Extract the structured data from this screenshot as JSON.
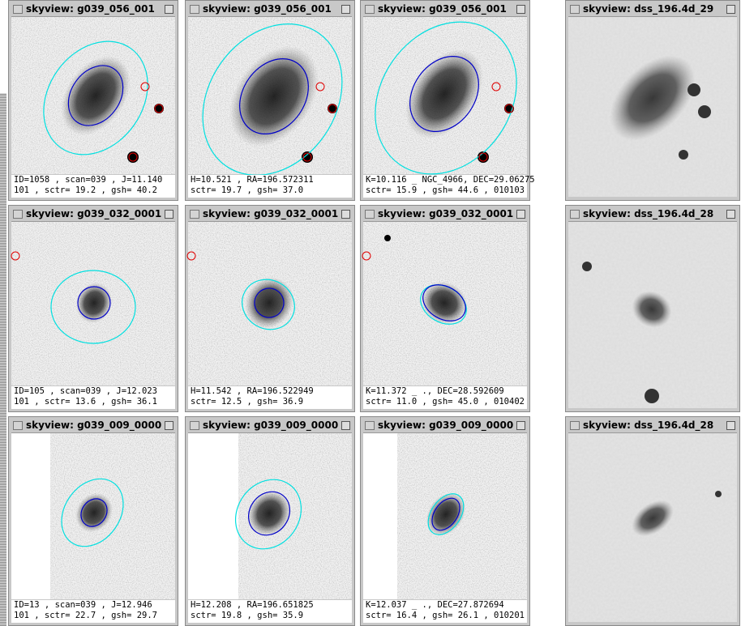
{
  "rows": [
    {
      "windows": [
        {
          "title": "skyview: g039_056_001",
          "caption": [
            "ID=1058 , scan=039 , J=11.140",
            "101 , sctr= 19.2 , gsh= 40.2"
          ]
        },
        {
          "title": "skyview: g039_056_001",
          "caption": [
            "H=10.521 , RA=196.572311",
            "sctr= 19.7 , gsh= 37.0"
          ]
        },
        {
          "title": "skyview: g039_056_001",
          "caption": [
            "K=10.116 _ NGC_4966, DEC=29.06275",
            "sctr= 15.9 , gsh= 44.6 , 010103"
          ]
        },
        {
          "title": "skyview: dss_196.4d_29"
        }
      ]
    },
    {
      "windows": [
        {
          "title": "skyview: g039_032_0001",
          "caption": [
            "ID=105 , scan=039 , J=12.023",
            "101 , sctr= 13.6 , gsh= 36.1"
          ]
        },
        {
          "title": "skyview: g039_032_0001",
          "caption": [
            "H=11.542 , RA=196.522949",
            "sctr= 12.5 , gsh= 36.9"
          ]
        },
        {
          "title": "skyview: g039_032_0001",
          "caption": [
            "K=11.372 _ ., DEC=28.592609",
            "sctr= 11.0 , gsh= 45.0 , 010402"
          ]
        },
        {
          "title": "skyview: dss_196.4d_28"
        }
      ]
    },
    {
      "windows": [
        {
          "title": "skyview: g039_009_0000",
          "caption": [
            "ID=13 , scan=039 , J=12.946",
            "101 , sctr= 22.7 , gsh= 29.7"
          ]
        },
        {
          "title": "skyview: g039_009_0000",
          "caption": [
            "H=12.208 , RA=196.651825",
            "sctr= 19.8 , gsh= 35.9"
          ]
        },
        {
          "title": "skyview: g039_009_0000",
          "caption": [
            "K=12.037 _ ., DEC=27.872694",
            "sctr= 16.4 , gsh= 26.1 , 010201"
          ]
        },
        {
          "title": "skyview: dss_196.4d_28"
        }
      ]
    }
  ]
}
